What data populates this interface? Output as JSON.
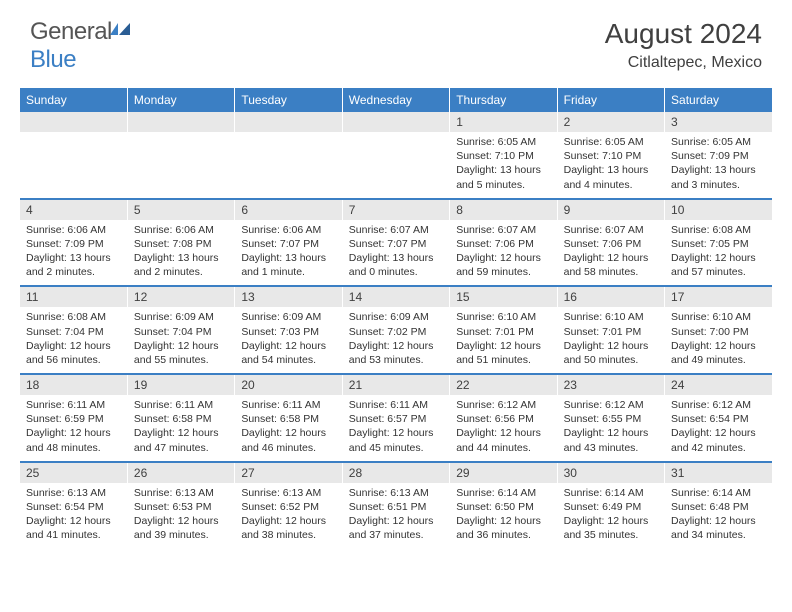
{
  "logo": {
    "text_gray": "General",
    "text_blue": "Blue"
  },
  "title": "August 2024",
  "location": "Citlaltepec, Mexico",
  "colors": {
    "header_bg": "#3b7fc4",
    "header_text": "#ffffff",
    "daynum_bg": "#e8e8e8",
    "row_divider": "#3b7fc4",
    "body_text": "#333333",
    "title_text": "#404040"
  },
  "day_headers": [
    "Sunday",
    "Monday",
    "Tuesday",
    "Wednesday",
    "Thursday",
    "Friday",
    "Saturday"
  ],
  "weeks": [
    {
      "nums": [
        "",
        "",
        "",
        "",
        "1",
        "2",
        "3"
      ],
      "cells": [
        "",
        "",
        "",
        "",
        "Sunrise: 6:05 AM\nSunset: 7:10 PM\nDaylight: 13 hours and 5 minutes.",
        "Sunrise: 6:05 AM\nSunset: 7:10 PM\nDaylight: 13 hours and 4 minutes.",
        "Sunrise: 6:05 AM\nSunset: 7:09 PM\nDaylight: 13 hours and 3 minutes."
      ]
    },
    {
      "nums": [
        "4",
        "5",
        "6",
        "7",
        "8",
        "9",
        "10"
      ],
      "cells": [
        "Sunrise: 6:06 AM\nSunset: 7:09 PM\nDaylight: 13 hours and 2 minutes.",
        "Sunrise: 6:06 AM\nSunset: 7:08 PM\nDaylight: 13 hours and 2 minutes.",
        "Sunrise: 6:06 AM\nSunset: 7:07 PM\nDaylight: 13 hours and 1 minute.",
        "Sunrise: 6:07 AM\nSunset: 7:07 PM\nDaylight: 13 hours and 0 minutes.",
        "Sunrise: 6:07 AM\nSunset: 7:06 PM\nDaylight: 12 hours and 59 minutes.",
        "Sunrise: 6:07 AM\nSunset: 7:06 PM\nDaylight: 12 hours and 58 minutes.",
        "Sunrise: 6:08 AM\nSunset: 7:05 PM\nDaylight: 12 hours and 57 minutes."
      ]
    },
    {
      "nums": [
        "11",
        "12",
        "13",
        "14",
        "15",
        "16",
        "17"
      ],
      "cells": [
        "Sunrise: 6:08 AM\nSunset: 7:04 PM\nDaylight: 12 hours and 56 minutes.",
        "Sunrise: 6:09 AM\nSunset: 7:04 PM\nDaylight: 12 hours and 55 minutes.",
        "Sunrise: 6:09 AM\nSunset: 7:03 PM\nDaylight: 12 hours and 54 minutes.",
        "Sunrise: 6:09 AM\nSunset: 7:02 PM\nDaylight: 12 hours and 53 minutes.",
        "Sunrise: 6:10 AM\nSunset: 7:01 PM\nDaylight: 12 hours and 51 minutes.",
        "Sunrise: 6:10 AM\nSunset: 7:01 PM\nDaylight: 12 hours and 50 minutes.",
        "Sunrise: 6:10 AM\nSunset: 7:00 PM\nDaylight: 12 hours and 49 minutes."
      ]
    },
    {
      "nums": [
        "18",
        "19",
        "20",
        "21",
        "22",
        "23",
        "24"
      ],
      "cells": [
        "Sunrise: 6:11 AM\nSunset: 6:59 PM\nDaylight: 12 hours and 48 minutes.",
        "Sunrise: 6:11 AM\nSunset: 6:58 PM\nDaylight: 12 hours and 47 minutes.",
        "Sunrise: 6:11 AM\nSunset: 6:58 PM\nDaylight: 12 hours and 46 minutes.",
        "Sunrise: 6:11 AM\nSunset: 6:57 PM\nDaylight: 12 hours and 45 minutes.",
        "Sunrise: 6:12 AM\nSunset: 6:56 PM\nDaylight: 12 hours and 44 minutes.",
        "Sunrise: 6:12 AM\nSunset: 6:55 PM\nDaylight: 12 hours and 43 minutes.",
        "Sunrise: 6:12 AM\nSunset: 6:54 PM\nDaylight: 12 hours and 42 minutes."
      ]
    },
    {
      "nums": [
        "25",
        "26",
        "27",
        "28",
        "29",
        "30",
        "31"
      ],
      "cells": [
        "Sunrise: 6:13 AM\nSunset: 6:54 PM\nDaylight: 12 hours and 41 minutes.",
        "Sunrise: 6:13 AM\nSunset: 6:53 PM\nDaylight: 12 hours and 39 minutes.",
        "Sunrise: 6:13 AM\nSunset: 6:52 PM\nDaylight: 12 hours and 38 minutes.",
        "Sunrise: 6:13 AM\nSunset: 6:51 PM\nDaylight: 12 hours and 37 minutes.",
        "Sunrise: 6:14 AM\nSunset: 6:50 PM\nDaylight: 12 hours and 36 minutes.",
        "Sunrise: 6:14 AM\nSunset: 6:49 PM\nDaylight: 12 hours and 35 minutes.",
        "Sunrise: 6:14 AM\nSunset: 6:48 PM\nDaylight: 12 hours and 34 minutes."
      ]
    }
  ]
}
